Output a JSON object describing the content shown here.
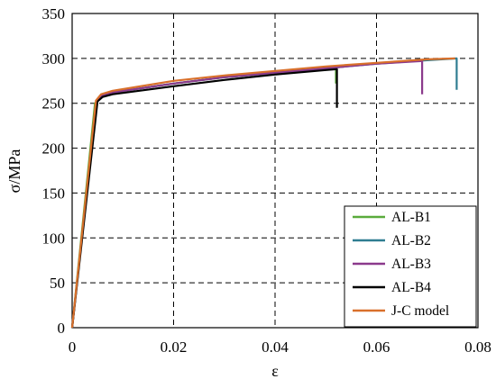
{
  "chart_data": {
    "type": "line",
    "title": "",
    "xlabel": "ε",
    "ylabel": "σ/MPa",
    "xlim": [
      0,
      0.08
    ],
    "ylim": [
      0,
      350
    ],
    "xticks": [
      0,
      0.02,
      0.04,
      0.06,
      0.08
    ],
    "xtick_labels": [
      "0",
      "0.02",
      "0.04",
      "0.06",
      "0.08"
    ],
    "yticks": [
      0,
      50,
      100,
      150,
      200,
      250,
      300,
      350
    ],
    "ytick_labels": [
      "0",
      "50",
      "100",
      "150",
      "200",
      "250",
      "300",
      "350"
    ],
    "grid": "dashed",
    "legend_position": "bottom-right",
    "series": [
      {
        "name": "AL-B1",
        "color": "#5aab3c",
        "x": [
          0,
          0.0045,
          0.0055,
          0.008,
          0.02,
          0.03,
          0.04,
          0.05,
          0.052,
          0.052
        ],
        "y": [
          0,
          250,
          257,
          262,
          272,
          279,
          284,
          288,
          289,
          272
        ]
      },
      {
        "name": "AL-B2",
        "color": "#2f7d91",
        "x": [
          0,
          0.0048,
          0.0058,
          0.008,
          0.02,
          0.03,
          0.04,
          0.05,
          0.06,
          0.07,
          0.0758,
          0.0758
        ],
        "y": [
          0,
          252,
          258,
          262,
          272,
          279,
          284,
          289,
          294,
          298,
          300,
          265
        ]
      },
      {
        "name": "AL-B3",
        "color": "#8b3a8c",
        "x": [
          0,
          0.0048,
          0.0058,
          0.008,
          0.02,
          0.03,
          0.04,
          0.05,
          0.06,
          0.069,
          0.069
        ],
        "y": [
          0,
          252,
          258,
          262,
          272,
          279,
          284,
          289,
          294,
          297,
          260
        ]
      },
      {
        "name": "AL-B4",
        "color": "#000000",
        "x": [
          0,
          0.005,
          0.006,
          0.008,
          0.02,
          0.03,
          0.04,
          0.05,
          0.0522,
          0.0522
        ],
        "y": [
          0,
          252,
          257,
          260,
          269,
          276,
          282,
          287,
          288,
          245
        ]
      },
      {
        "name": "J-C model",
        "color": "#d9702b",
        "x": [
          0,
          0.0047,
          0.0057,
          0.008,
          0.02,
          0.03,
          0.04,
          0.05,
          0.06,
          0.07,
          0.0755
        ],
        "y": [
          0,
          253,
          260,
          264,
          275,
          281,
          286,
          291,
          295,
          299,
          300
        ]
      }
    ]
  }
}
